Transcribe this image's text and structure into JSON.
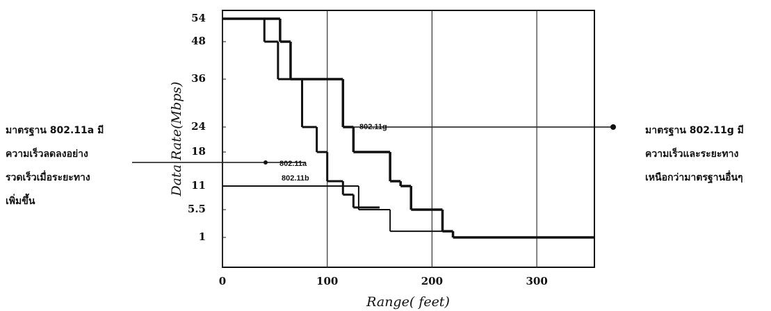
{
  "chart_data": {
    "type": "step",
    "ylabel": "Data Rate(Mbps)",
    "xlabel": "Range( feet)",
    "xlim": [
      0,
      355
    ],
    "xticks": [
      0,
      100,
      200,
      300
    ],
    "ylim": [
      0,
      57
    ],
    "yticks": [
      54,
      48,
      36,
      24,
      18,
      11,
      5.5,
      1
    ],
    "grid": true,
    "series": [
      {
        "name": "802.11a",
        "color": "#111111",
        "x": [
          40,
          53,
          76,
          90,
          100,
          115,
          125,
          150
        ],
        "values": [
          54,
          48,
          36,
          24,
          18,
          12,
          9,
          6
        ]
      },
      {
        "name": "802.11g",
        "color": "#111111",
        "x": [
          55,
          65,
          115,
          125,
          160,
          170,
          180,
          210,
          220,
          355
        ],
        "values": [
          54,
          48,
          36,
          24,
          18,
          12,
          11,
          5.5,
          2,
          1
        ]
      },
      {
        "name": "802.11b",
        "color": "#111111",
        "x": [
          130,
          160,
          220,
          260
        ],
        "values": [
          11,
          5.5,
          2,
          1
        ]
      }
    ],
    "annotations": {
      "left": [
        "มาตรฐาน 802.11a มี",
        "ความเร็วลดลงอย่าง",
        "รวดเร็วเมื่อระยะทาง",
        "เพิ่มขึ้น"
      ],
      "right": [
        "มาตรฐาน 802.11g มี",
        "ความเร็วและระยะทาง",
        "เหนือกว่ามาตรฐานอื่นๆ"
      ]
    }
  }
}
